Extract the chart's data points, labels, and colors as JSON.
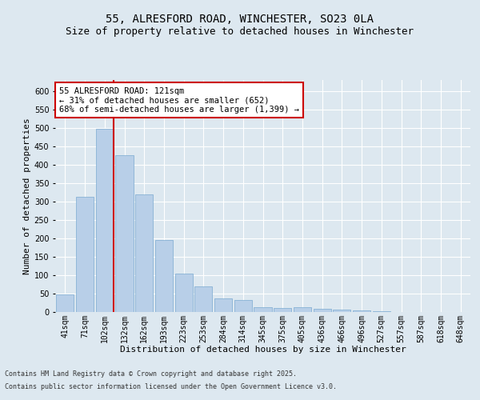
{
  "title_line1": "55, ALRESFORD ROAD, WINCHESTER, SO23 0LA",
  "title_line2": "Size of property relative to detached houses in Winchester",
  "xlabel": "Distribution of detached houses by size in Winchester",
  "ylabel": "Number of detached properties",
  "categories": [
    "41sqm",
    "71sqm",
    "102sqm",
    "132sqm",
    "162sqm",
    "193sqm",
    "223sqm",
    "253sqm",
    "284sqm",
    "314sqm",
    "345sqm",
    "375sqm",
    "405sqm",
    "436sqm",
    "466sqm",
    "496sqm",
    "527sqm",
    "557sqm",
    "587sqm",
    "618sqm",
    "648sqm"
  ],
  "values": [
    47,
    313,
    497,
    425,
    320,
    195,
    105,
    70,
    38,
    33,
    12,
    10,
    13,
    8,
    7,
    5,
    2,
    1,
    1,
    1,
    1
  ],
  "bar_color": "#b8cfe8",
  "bar_edge_color": "#7aaad0",
  "vline_x": 2,
  "vline_color": "#cc0000",
  "ylim": [
    0,
    630
  ],
  "yticks": [
    0,
    50,
    100,
    150,
    200,
    250,
    300,
    350,
    400,
    450,
    500,
    550,
    600
  ],
  "annotation_text": "55 ALRESFORD ROAD: 121sqm\n← 31% of detached houses are smaller (652)\n68% of semi-detached houses are larger (1,399) →",
  "annotation_box_color": "#ffffff",
  "annotation_box_edge": "#cc0000",
  "bg_color": "#dde8f0",
  "plot_bg_color": "#dde8f0",
  "grid_color": "#ffffff",
  "footer_line1": "Contains HM Land Registry data © Crown copyright and database right 2025.",
  "footer_line2": "Contains public sector information licensed under the Open Government Licence v3.0.",
  "title_fontsize": 10,
  "subtitle_fontsize": 9,
  "tick_fontsize": 7,
  "label_fontsize": 8,
  "annotation_fontsize": 7.5
}
